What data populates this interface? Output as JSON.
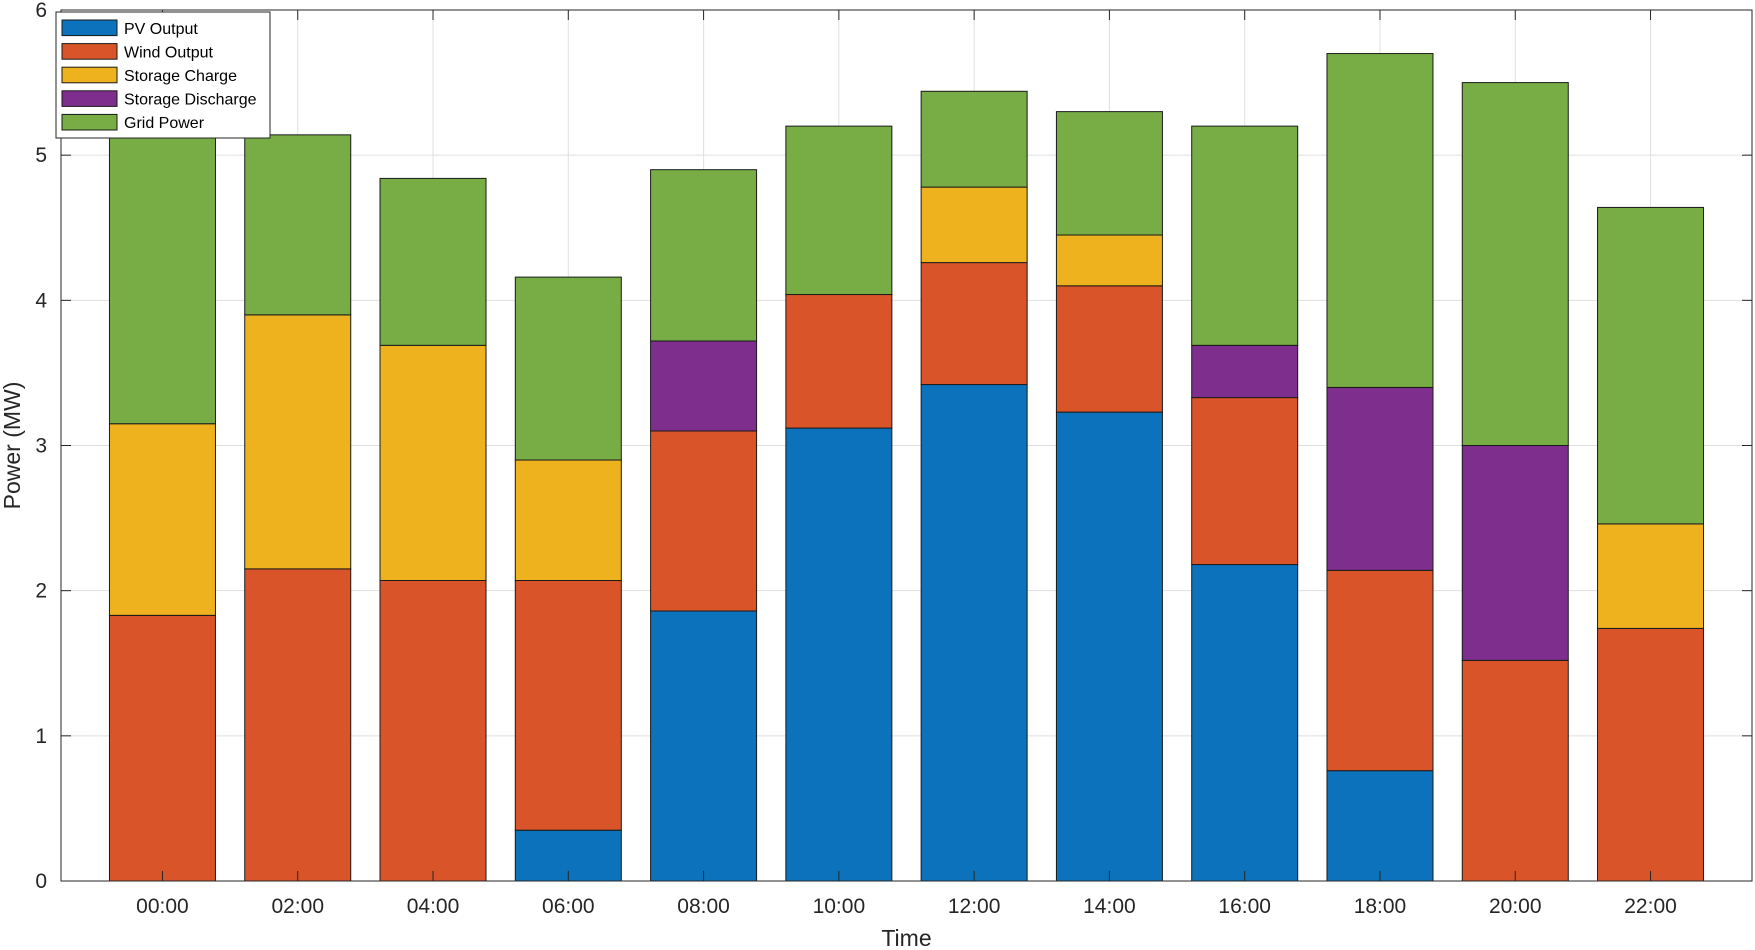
{
  "chart_data": {
    "type": "bar",
    "stacked": true,
    "title": "",
    "xlabel": "Time",
    "ylabel": "Power (MW)",
    "ylim": [
      0,
      6
    ],
    "yticks": [
      0,
      1,
      2,
      3,
      4,
      5,
      6
    ],
    "grid": true,
    "legend_position": "top-left",
    "categories": [
      "00:00",
      "02:00",
      "04:00",
      "06:00",
      "08:00",
      "10:00",
      "12:00",
      "14:00",
      "16:00",
      "18:00",
      "20:00",
      "22:00"
    ],
    "series": [
      {
        "name": "PV Output",
        "color": "#0b72bb",
        "values": [
          0,
          0,
          0,
          0.35,
          1.86,
          3.12,
          3.42,
          3.23,
          2.18,
          0.76,
          0,
          0
        ]
      },
      {
        "name": "Wind Output",
        "color": "#da5429",
        "values": [
          1.83,
          2.15,
          2.07,
          1.72,
          1.24,
          0.92,
          0.84,
          0.87,
          1.15,
          1.38,
          1.52,
          1.74
        ]
      },
      {
        "name": "Storage Charge",
        "color": "#eeb21e",
        "values": [
          1.32,
          1.75,
          1.62,
          0.83,
          0,
          0,
          0.52,
          0.35,
          0,
          0,
          0,
          0.72
        ]
      },
      {
        "name": "Storage Discharge",
        "color": "#7e2f8e",
        "values": [
          0,
          0,
          0,
          0,
          0.62,
          0,
          0,
          0,
          0.36,
          1.26,
          1.48,
          0
        ]
      },
      {
        "name": "Grid Power",
        "color": "#77ad44",
        "values": [
          1.99,
          1.24,
          1.15,
          1.26,
          1.18,
          1.16,
          0.66,
          0.85,
          1.51,
          2.3,
          2.5,
          2.18
        ]
      }
    ]
  }
}
